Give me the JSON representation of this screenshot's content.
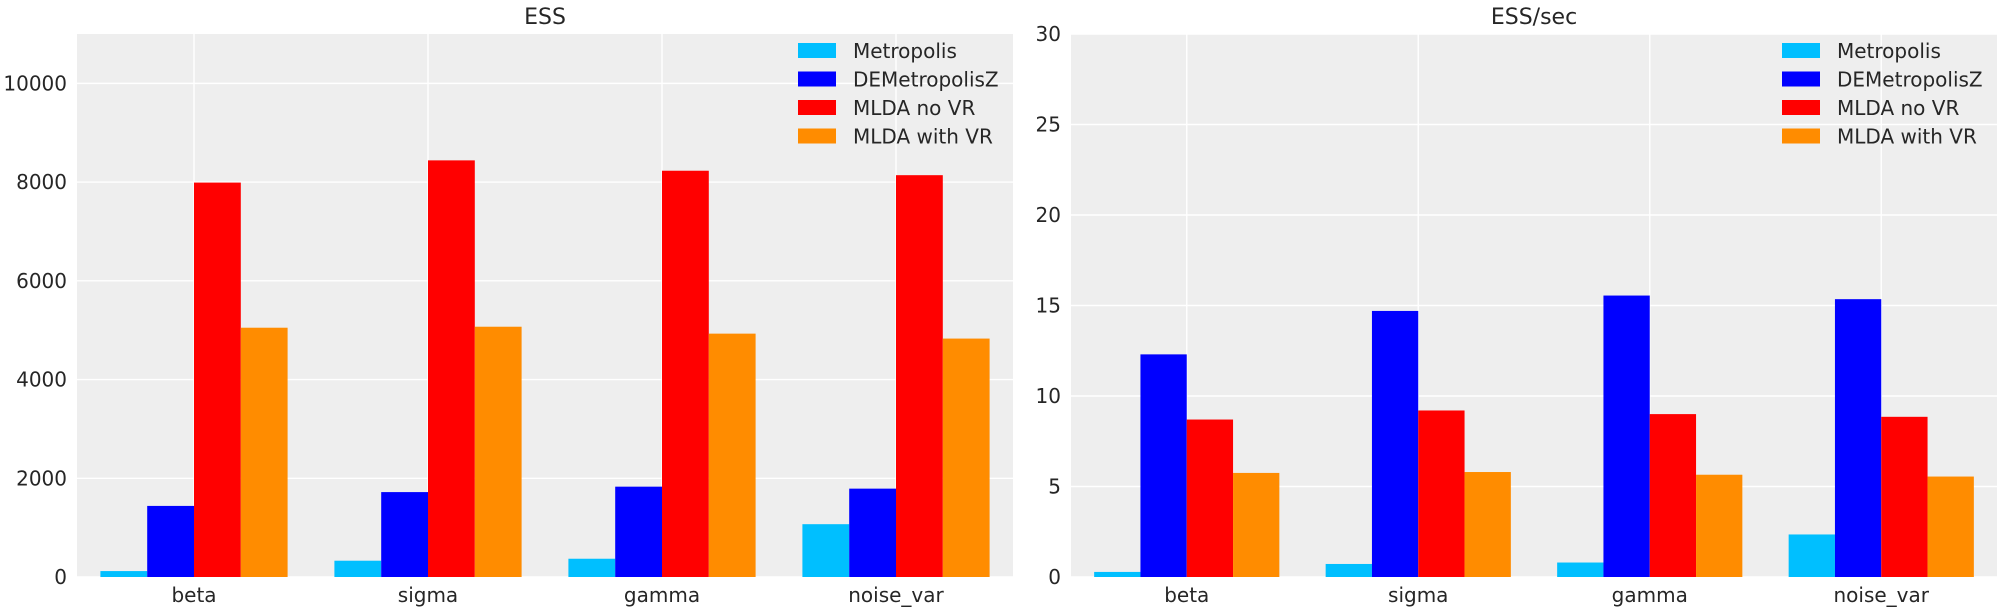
{
  "chart_data": [
    {
      "type": "bar",
      "title": "ESS",
      "xlabel": "",
      "ylabel": "",
      "categories": [
        "beta",
        "sigma",
        "gamma",
        "noise_var"
      ],
      "ylim": [
        0,
        11000
      ],
      "yticks": [
        0,
        2000,
        4000,
        6000,
        8000,
        10000
      ],
      "grid": true,
      "legend_position": "top-right",
      "series": [
        {
          "name": "Metropolis",
          "color": "#00bfff",
          "values": [
            120,
            330,
            370,
            1070
          ]
        },
        {
          "name": "DEMetropolisZ",
          "color": "#0000ff",
          "values": [
            1440,
            1720,
            1830,
            1790
          ]
        },
        {
          "name": "MLDA no VR",
          "color": "#ff0000",
          "values": [
            7990,
            8440,
            8230,
            8140
          ]
        },
        {
          "name": "MLDA with VR",
          "color": "#ff8c00",
          "values": [
            5050,
            5070,
            4930,
            4830
          ]
        }
      ]
    },
    {
      "type": "bar",
      "title": "ESS/sec",
      "xlabel": "",
      "ylabel": "",
      "categories": [
        "beta",
        "sigma",
        "gamma",
        "noise_var"
      ],
      "ylim": [
        0,
        30
      ],
      "yticks": [
        0,
        5,
        10,
        15,
        20,
        25,
        30
      ],
      "grid": true,
      "legend_position": "top-right",
      "series": [
        {
          "name": "Metropolis",
          "color": "#00bfff",
          "values": [
            0.28,
            0.72,
            0.8,
            2.35
          ]
        },
        {
          "name": "DEMetropolisZ",
          "color": "#0000ff",
          "values": [
            12.3,
            14.7,
            15.55,
            15.35
          ]
        },
        {
          "name": "MLDA no VR",
          "color": "#ff0000",
          "values": [
            8.7,
            9.2,
            9.0,
            8.85
          ]
        },
        {
          "name": "MLDA with VR",
          "color": "#ff8c00",
          "values": [
            5.75,
            5.8,
            5.65,
            5.55
          ]
        }
      ]
    }
  ]
}
